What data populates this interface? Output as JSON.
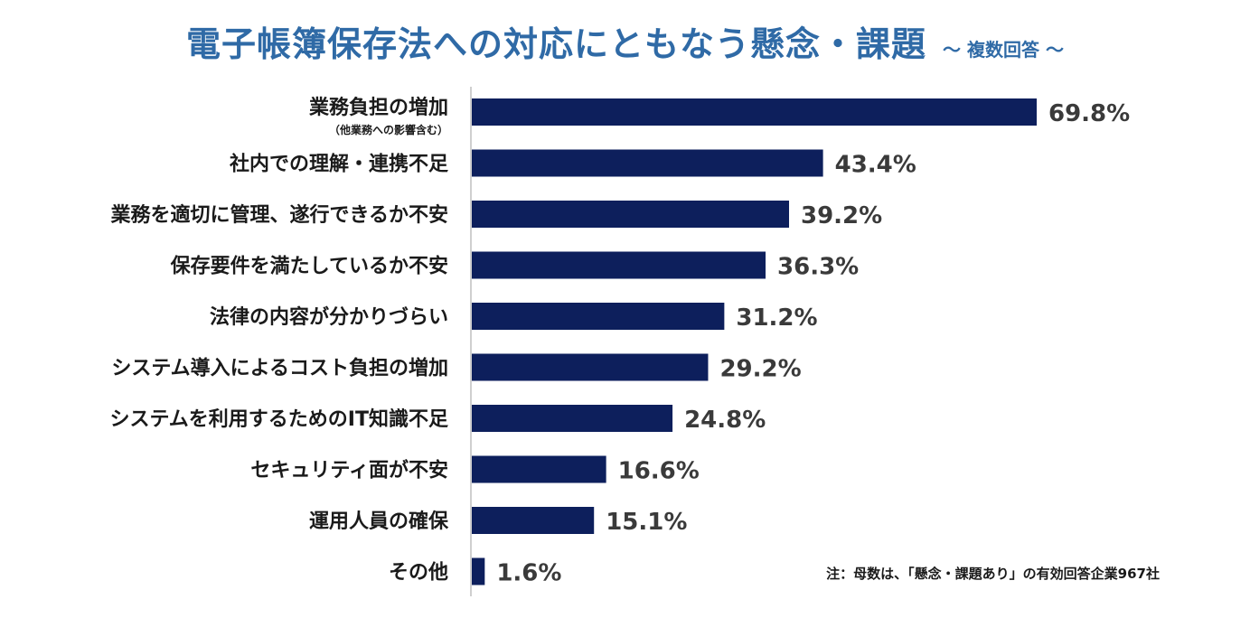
{
  "chart_data": {
    "type": "bar",
    "orientation": "horizontal",
    "title": "電子帳簿保存法への対応にともなう懸念・課題",
    "subtitle": "～ 複数回答 ～",
    "categories": [
      "業務負担の増加",
      "社内での理解・連携不足",
      "業務を適切に管理、遂行できるか不安",
      "保存要件を満たしているか不安",
      "法律の内容が分かりづらい",
      "システム導入によるコスト負担の増加",
      "システムを利用するためのIT知識不足",
      "セキュリティ面が不安",
      "運用人員の確保",
      "その他"
    ],
    "category_notes": [
      "（他業務への影響含む）",
      "",
      "",
      "",
      "",
      "",
      "",
      "",
      "",
      ""
    ],
    "values": [
      69.8,
      43.4,
      39.2,
      36.3,
      31.2,
      29.2,
      24.8,
      16.6,
      15.1,
      1.6
    ],
    "value_labels": [
      "69.8%",
      "43.4%",
      "39.2%",
      "36.3%",
      "31.2%",
      "29.2%",
      "24.8%",
      "16.6%",
      "15.1%",
      "1.6%"
    ],
    "unit": "%",
    "xlim": [
      0,
      100
    ],
    "grid": false,
    "bar_color": "#0d1f5c",
    "note": "注：母数は、「懸念・課題あり」の有効回答企業967社"
  }
}
